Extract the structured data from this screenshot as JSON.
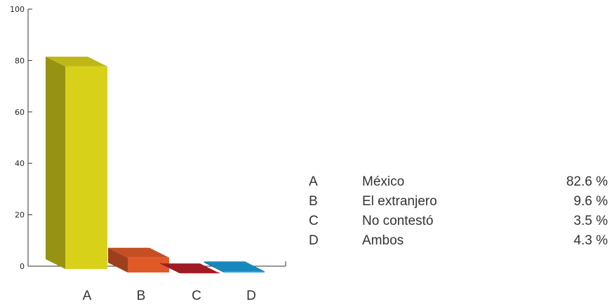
{
  "chart_data": {
    "type": "bar",
    "categories": [
      "A",
      "B",
      "C",
      "D"
    ],
    "values": [
      82.6,
      9.6,
      3.5,
      4.3
    ],
    "ylim": [
      0,
      100
    ],
    "yticks": [
      0,
      20,
      40,
      60,
      80,
      100
    ],
    "legend_placement": "right",
    "grid": false,
    "colors": [
      "#d8d11a",
      "#e05a28",
      "#b51f2b",
      "#1a9ad8"
    ],
    "legend": [
      {
        "key": "A",
        "name": "México",
        "value": "82.6 %"
      },
      {
        "key": "B",
        "name": "El extranjero",
        "value": "9.6 %"
      },
      {
        "key": "C",
        "name": "No contestó",
        "value": "3.5 %"
      },
      {
        "key": "D",
        "name": "Ambos",
        "value": "4.3 %"
      }
    ]
  }
}
